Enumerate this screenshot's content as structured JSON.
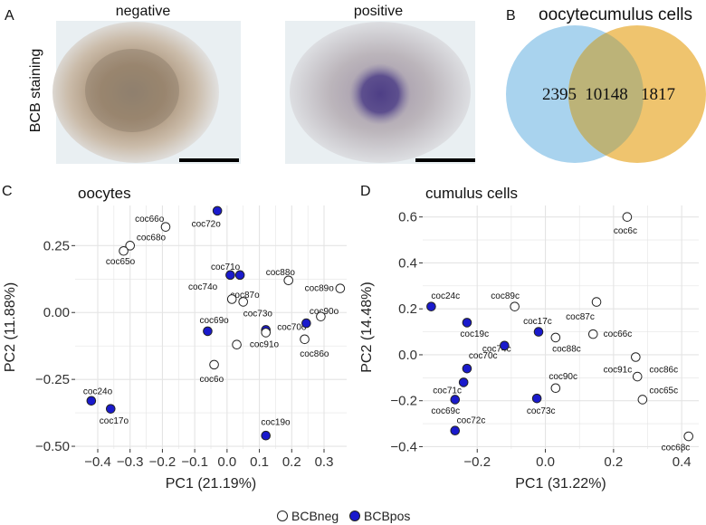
{
  "colors": {
    "bcbpos": "#1a1acc",
    "bcbneg": "#ffffff",
    "stroke": "#222222",
    "grid": "#e4e4e4",
    "venn_left": "#a9d3ee",
    "venn_right": "#efc46e",
    "venn_overlap": "#bcb378"
  },
  "panel_a": {
    "letter": "A",
    "label_negative": "negative",
    "label_positive": "positive",
    "row_label": "BCB staining"
  },
  "panel_b": {
    "letter": "B",
    "left_title": "oocyte",
    "right_title": "cumulus cells",
    "left_only": "2395",
    "overlap": "10148",
    "right_only": "1817"
  },
  "legend": {
    "neg_label": "BCBneg",
    "pos_label": "BCBpos"
  },
  "chart_data": [
    {
      "id": "C",
      "letter": "C",
      "type": "scatter",
      "title": "oocytes",
      "xlabel": "PC1 (21.19%)",
      "ylabel": "PC2 (11.88%)",
      "xlim": [
        -0.47,
        0.37
      ],
      "ylim": [
        -0.51,
        0.4
      ],
      "xticks": [
        -0.4,
        -0.3,
        -0.2,
        -0.1,
        0.0,
        0.1,
        0.2,
        0.3
      ],
      "xtick_labels": [
        "−0.4",
        "−0.3",
        "−0.2",
        "−0.1",
        "0.0",
        "0.1",
        "0.2",
        "0.3"
      ],
      "yticks": [
        -0.5,
        -0.25,
        0.0,
        0.25
      ],
      "ytick_labels": [
        "−0.50",
        "−0.25",
        "0.00",
        "0.25"
      ],
      "points": [
        {
          "label": "coc66o",
          "x": -0.19,
          "y": 0.32,
          "group": "BCBneg",
          "lx": -0.285,
          "ly": 0.35
        },
        {
          "label": "coc68o",
          "x": -0.3,
          "y": 0.25,
          "group": "BCBneg",
          "lx": -0.28,
          "ly": 0.28
        },
        {
          "label": "coc65o",
          "x": -0.32,
          "y": 0.23,
          "group": "BCBneg",
          "lx": -0.375,
          "ly": 0.19
        },
        {
          "label": "coc72o",
          "x": -0.03,
          "y": 0.38,
          "group": "BCBpos",
          "lx": -0.11,
          "ly": 0.33
        },
        {
          "label": "coc71o",
          "x": 0.01,
          "y": 0.14,
          "group": "BCBpos",
          "lx": -0.05,
          "ly": 0.17
        },
        {
          "label": "coc71o_b",
          "x": 0.04,
          "y": 0.14,
          "group": "BCBpos",
          "lx": null,
          "ly": null
        },
        {
          "label": "coc74o",
          "x": 0.015,
          "y": 0.05,
          "group": "BCBneg",
          "lx": -0.12,
          "ly": 0.095
        },
        {
          "label": "coc87o",
          "x": 0.05,
          "y": 0.04,
          "group": "BCBneg",
          "lx": 0.01,
          "ly": 0.065
        },
        {
          "label": "coc88o",
          "x": 0.19,
          "y": 0.12,
          "group": "BCBneg",
          "lx": 0.12,
          "ly": 0.15
        },
        {
          "label": "coc89o",
          "x": 0.35,
          "y": 0.09,
          "group": "BCBneg",
          "lx": 0.24,
          "ly": 0.09
        },
        {
          "label": "coc90o",
          "x": 0.29,
          "y": -0.015,
          "group": "BCBneg",
          "lx": 0.255,
          "ly": 0.005
        },
        {
          "label": "coc73o",
          "x": 0.12,
          "y": -0.065,
          "group": "BCBpos",
          "lx": 0.05,
          "ly": -0.005
        },
        {
          "label": "coc69o",
          "x": -0.06,
          "y": -0.07,
          "group": "BCBpos",
          "lx": -0.085,
          "ly": -0.03
        },
        {
          "label": "coc70o",
          "x": 0.12,
          "y": -0.075,
          "group": "BCBneg",
          "lx": 0.155,
          "ly": -0.055
        },
        {
          "label": "coc70o_b",
          "x": 0.245,
          "y": -0.04,
          "group": "BCBpos",
          "lx": null,
          "ly": null
        },
        {
          "label": "coc86o",
          "x": 0.24,
          "y": -0.1,
          "group": "BCBneg",
          "lx": 0.225,
          "ly": -0.155
        },
        {
          "label": "coc91o",
          "x": 0.03,
          "y": -0.12,
          "group": "BCBneg",
          "lx": 0.07,
          "ly": -0.12
        },
        {
          "label": "coc6o",
          "x": -0.04,
          "y": -0.195,
          "group": "BCBneg",
          "lx": -0.085,
          "ly": -0.25
        },
        {
          "label": "coc24o",
          "x": -0.42,
          "y": -0.33,
          "group": "BCBpos",
          "lx": -0.445,
          "ly": -0.295
        },
        {
          "label": "coc17o",
          "x": -0.36,
          "y": -0.36,
          "group": "BCBpos",
          "lx": -0.395,
          "ly": -0.405
        },
        {
          "label": "coc19o",
          "x": 0.12,
          "y": -0.46,
          "group": "BCBpos",
          "lx": 0.105,
          "ly": -0.41
        }
      ]
    },
    {
      "id": "D",
      "letter": "D",
      "type": "scatter",
      "title": "cumulus cells",
      "xlabel": "PC1 (31.22%)",
      "ylabel": "PC2 (14.48%)",
      "xlim": [
        -0.36,
        0.45
      ],
      "ylim": [
        -0.41,
        0.65
      ],
      "xticks": [
        -0.2,
        0.0,
        0.2,
        0.4
      ],
      "xtick_labels": [
        "−0.2",
        "0.0",
        "0.2",
        "0.4"
      ],
      "yticks": [
        -0.4,
        -0.2,
        0.0,
        0.2,
        0.4,
        0.6
      ],
      "ytick_labels": [
        "−0.4",
        "−0.2",
        "0.0",
        "0.2",
        "0.4",
        "0.6"
      ],
      "points": [
        {
          "label": "coc6c",
          "x": 0.24,
          "y": 0.6,
          "group": "BCBneg",
          "lx": 0.2,
          "ly": 0.54
        },
        {
          "label": "coc24c",
          "x": -0.335,
          "y": 0.21,
          "group": "BCBpos",
          "lx": -0.335,
          "ly": 0.255
        },
        {
          "label": "coc89c",
          "x": -0.09,
          "y": 0.21,
          "group": "BCBneg",
          "lx": -0.16,
          "ly": 0.255
        },
        {
          "label": "coc17c",
          "x": -0.02,
          "y": 0.1,
          "group": "BCBpos",
          "lx": -0.065,
          "ly": 0.145
        },
        {
          "label": "coc87c",
          "x": 0.15,
          "y": 0.23,
          "group": "BCBneg",
          "lx": 0.06,
          "ly": 0.165
        },
        {
          "label": "coc19c",
          "x": -0.23,
          "y": 0.14,
          "group": "BCBpos",
          "lx": -0.25,
          "ly": 0.09
        },
        {
          "label": "coc66c",
          "x": 0.14,
          "y": 0.09,
          "group": "BCBneg",
          "lx": 0.17,
          "ly": 0.09
        },
        {
          "label": "coc88c",
          "x": 0.03,
          "y": 0.075,
          "group": "BCBneg",
          "lx": 0.02,
          "ly": 0.025
        },
        {
          "label": "coc74c",
          "x": -0.12,
          "y": 0.04,
          "group": "BCBpos",
          "lx": -0.185,
          "ly": 0.025
        },
        {
          "label": "coc70c",
          "x": -0.23,
          "y": -0.06,
          "group": "BCBpos",
          "lx": -0.225,
          "ly": -0.005
        },
        {
          "label": "coc91c",
          "x": 0.265,
          "y": -0.01,
          "group": "BCBneg",
          "lx": 0.17,
          "ly": -0.065
        },
        {
          "label": "coc86c",
          "x": 0.27,
          "y": -0.095,
          "group": "BCBneg",
          "lx": 0.305,
          "ly": -0.065
        },
        {
          "label": "coc90c",
          "x": 0.03,
          "y": -0.145,
          "group": "BCBneg",
          "lx": 0.01,
          "ly": -0.095
        },
        {
          "label": "coc65c",
          "x": 0.285,
          "y": -0.195,
          "group": "BCBneg",
          "lx": 0.305,
          "ly": -0.155
        },
        {
          "label": "coc71c",
          "x": -0.24,
          "y": -0.12,
          "group": "BCBpos",
          "lx": -0.33,
          "ly": -0.155
        },
        {
          "label": "coc69c",
          "x": -0.265,
          "y": -0.195,
          "group": "BCBpos",
          "lx": -0.335,
          "ly": -0.245
        },
        {
          "label": "coc73c",
          "x": -0.025,
          "y": -0.19,
          "group": "BCBpos",
          "lx": -0.055,
          "ly": -0.245
        },
        {
          "label": "coc72c",
          "x": -0.265,
          "y": -0.33,
          "group": "BCBpos",
          "lx": -0.26,
          "ly": -0.285
        },
        {
          "label": "coc68c",
          "x": 0.42,
          "y": -0.355,
          "group": "BCBneg",
          "lx": 0.34,
          "ly": -0.405
        }
      ]
    }
  ]
}
